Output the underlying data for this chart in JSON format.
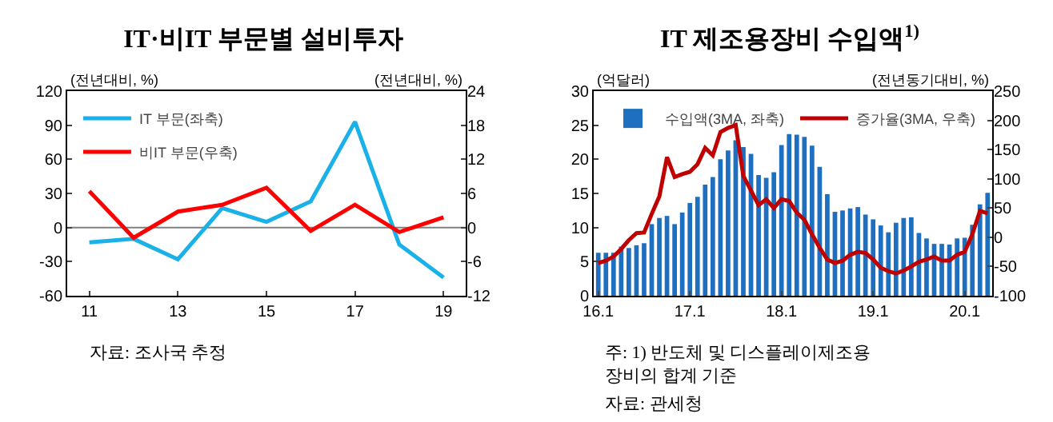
{
  "chart_data": [
    {
      "type": "line",
      "title": "IT·비IT 부문별 설비투자",
      "ylabel": "(전년대비, %)",
      "y2label": "(전년대비, %)",
      "x": [
        11,
        12,
        13,
        14,
        15,
        16,
        17,
        18,
        19
      ],
      "series": [
        {
          "name": "IT 부문(좌축)",
          "color": "#1ab0e8",
          "values": [
            -13,
            -10,
            -28,
            17,
            5,
            23,
            93,
            -15,
            -44
          ]
        },
        {
          "name": "비IT 부문(우축)",
          "color": "#ff0000",
          "axis": "y2",
          "values": [
            6.4,
            -1.8,
            2.8,
            4,
            7,
            -0.6,
            4,
            -0.8,
            1.8
          ]
        }
      ],
      "xlim": [
        10.5,
        19.5
      ],
      "xticks": [
        11,
        13,
        15,
        17,
        19
      ],
      "ylim": [
        -60,
        120
      ],
      "yticks": [
        -60,
        -30,
        0,
        30,
        60,
        90,
        120
      ],
      "y2lim": [
        -12,
        24
      ],
      "y2ticks": [
        -12,
        -6,
        0,
        6,
        12,
        18,
        24
      ],
      "ref_lines": [
        {
          "axis": "y",
          "value": 0,
          "color": "#808080"
        }
      ],
      "legend": "top left",
      "grid": false,
      "annotations": [
        "자료: 조사국 추정"
      ]
    },
    {
      "type": "bar",
      "title": "IT 제조용장비 수입액$^{1)}$",
      "ylabel": "(억달러)",
      "y2label": "(전년동기대비, %)",
      "categories": [
        "16.1",
        null,
        null,
        null,
        null,
        null,
        null,
        null,
        null,
        null,
        null,
        null,
        "17.1",
        null,
        null,
        null,
        null,
        null,
        null,
        null,
        null,
        null,
        null,
        null,
        "18.1",
        null,
        null,
        null,
        null,
        null,
        null,
        null,
        null,
        null,
        null,
        null,
        "19.1",
        null,
        null,
        null,
        null,
        null,
        null,
        null,
        null,
        null,
        null,
        null,
        "20.1",
        null,
        null,
        null
      ],
      "series": [
        {
          "name": "수입액(3MA, 좌축)",
          "color": "#1f6fc0",
          "values": [
            6.3,
            6.3,
            6.3,
            7.2,
            7.0,
            7.4,
            7.7,
            10.5,
            11.4,
            11.7,
            10.5,
            12.2,
            13.6,
            14.5,
            16.3,
            17.4,
            20.0,
            21.3,
            22.8,
            21.8,
            20.8,
            17.7,
            17.3,
            18.1,
            22.1,
            23.7,
            23.6,
            23.3,
            22.0,
            18.9,
            14.9,
            12.3,
            12.5,
            12.8,
            13.0,
            11.9,
            11.2,
            10.3,
            9.3,
            10.7,
            11.4,
            11.5,
            9.2,
            8.4,
            7.6,
            7.6,
            7.5,
            8.4,
            8.5,
            10.4,
            13.4,
            15.1
          ]
        },
        {
          "name": "증가율(3MA, 우축)",
          "type": "line",
          "color": "#c00000",
          "axis": "y2",
          "values": [
            -44,
            -40,
            -33,
            -20,
            -5,
            7,
            8,
            40,
            70,
            137,
            103,
            108,
            112,
            125,
            153,
            140,
            180,
            187,
            192,
            105,
            80,
            55,
            65,
            50,
            65,
            62,
            42,
            30,
            5,
            -18,
            -38,
            -44,
            -40,
            -30,
            -25,
            -27,
            -38,
            -52,
            -58,
            -62,
            -57,
            -50,
            -42,
            -38,
            -33,
            -40,
            -40,
            -30,
            -25,
            5,
            45,
            41
          ]
        }
      ],
      "ylim": [
        0,
        30
      ],
      "yticks": [
        0,
        5,
        10,
        15,
        20,
        25,
        30
      ],
      "y2lim": [
        -100,
        250
      ],
      "y2ticks": [
        -100,
        -50,
        0,
        50,
        100,
        150,
        200,
        250
      ],
      "legend": "top",
      "grid": false,
      "annotations": [
        "주: 1) 반도체 및 디스플레이제조용\n장비의 합계 기준",
        "자료: 관세청"
      ]
    }
  ]
}
